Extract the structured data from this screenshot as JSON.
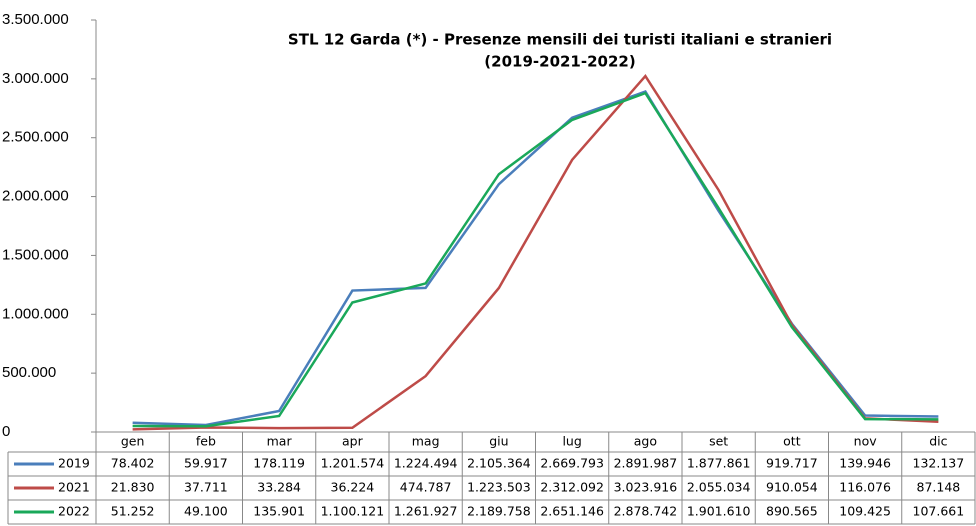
{
  "chart_data": {
    "type": "line",
    "title": "STL 12 Garda (*)  - Presenze mensili dei turisti  italiani e stranieri",
    "subtitle": "(2019-2021-2022)",
    "categories": [
      "gen",
      "feb",
      "mar",
      "apr",
      "mag",
      "giu",
      "lug",
      "ago",
      "set",
      "ott",
      "nov",
      "dic"
    ],
    "ylim": [
      0,
      3500000
    ],
    "yticks": [
      {
        "value": 0,
        "label": "0"
      },
      {
        "value": 500000,
        "label": "500.000"
      },
      {
        "value": 1000000,
        "label": "1.000.000"
      },
      {
        "value": 1500000,
        "label": "1.500.000"
      },
      {
        "value": 2000000,
        "label": "2.000.000"
      },
      {
        "value": 2500000,
        "label": "2.500.000"
      },
      {
        "value": 3000000,
        "label": "3.000.000"
      },
      {
        "value": 3500000,
        "label": "3.500.000"
      }
    ],
    "grid": false,
    "series": [
      {
        "name": "2019",
        "color": "#4a7ebb",
        "values": [
          78402,
          59917,
          178119,
          1201574,
          1224494,
          2105364,
          2669793,
          2891987,
          1877861,
          919717,
          139946,
          132137
        ],
        "value_labels": [
          "78.402",
          "59.917",
          "178.119",
          "1.201.574",
          "1.224.494",
          "2.105.364",
          "2.669.793",
          "2.891.987",
          "1.877.861",
          "919.717",
          "139.946",
          "132.137"
        ]
      },
      {
        "name": "2021",
        "color": "#be4b48",
        "values": [
          21830,
          37711,
          33284,
          36224,
          474787,
          1223503,
          2312092,
          3023916,
          2055034,
          910054,
          116076,
          87148
        ],
        "value_labels": [
          "21.830",
          "37.711",
          "33.284",
          "36.224",
          "474.787",
          "1.223.503",
          "2.312.092",
          "3.023.916",
          "2.055.034",
          "910.054",
          "116.076",
          "87.148"
        ]
      },
      {
        "name": "2022",
        "color": "#1aa85a",
        "values": [
          51252,
          49100,
          135901,
          1100121,
          1261927,
          2189758,
          2651146,
          2878742,
          1901610,
          890565,
          109425,
          107661
        ],
        "value_labels": [
          "51.252",
          "49.100",
          "135.901",
          "1.100.121",
          "1.261.927",
          "2.189.758",
          "2.651.146",
          "2.878.742",
          "1.901.610",
          "890.565",
          "109.425",
          "107.661"
        ]
      }
    ]
  }
}
